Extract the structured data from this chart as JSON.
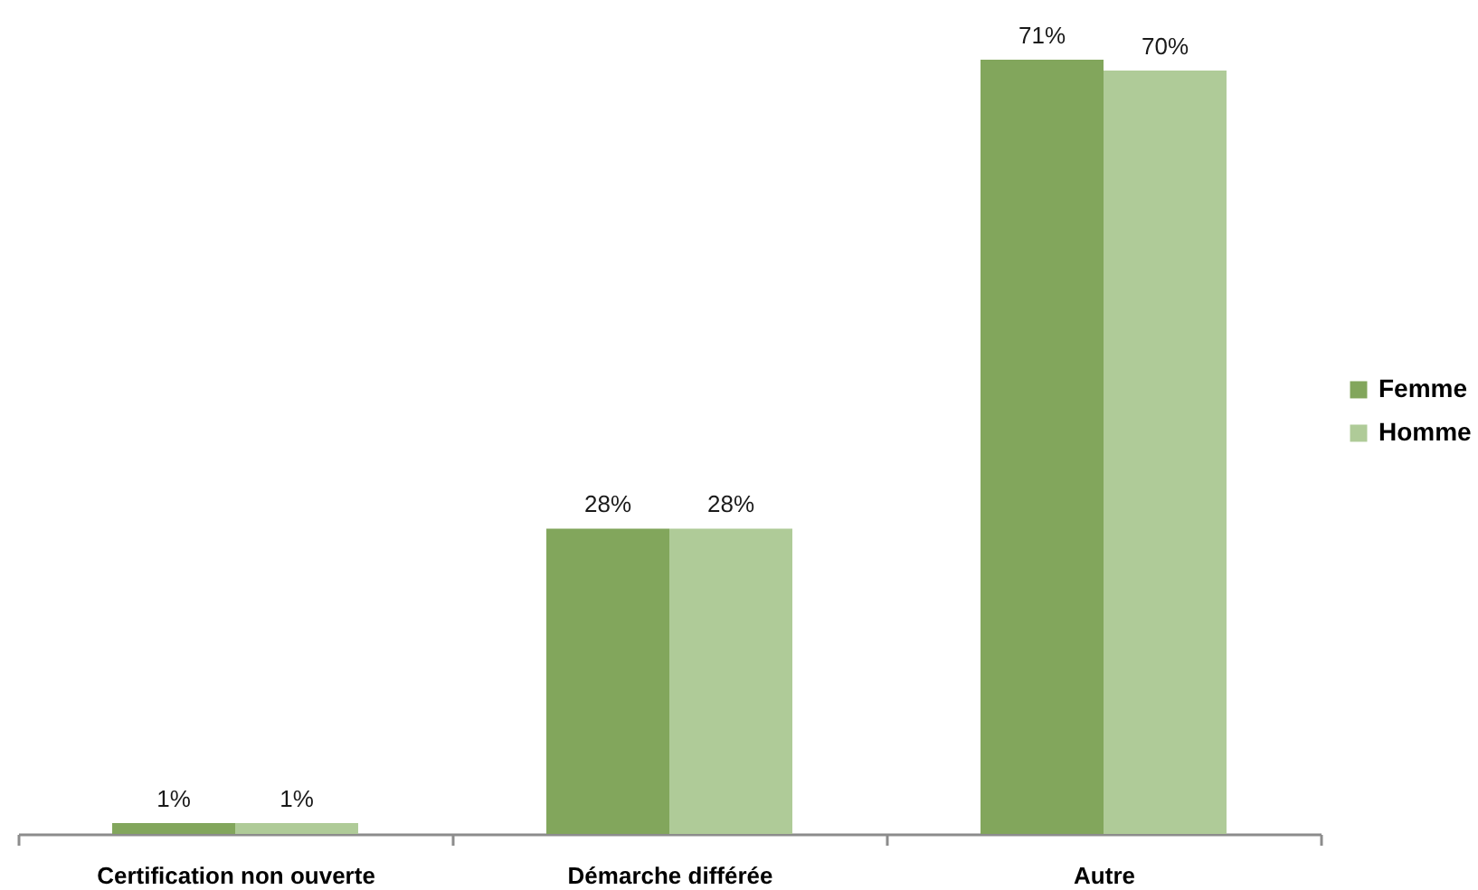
{
  "chart_data": {
    "type": "bar",
    "categories": [
      "Certification non ouverte",
      "Démarche différée",
      "Autre"
    ],
    "series": [
      {
        "name": "Femme",
        "color": "#82a65c",
        "values": [
          1,
          28,
          71
        ],
        "value_labels": [
          "1%",
          "28%",
          "71%"
        ]
      },
      {
        "name": "Homme",
        "color": "#afcb98",
        "values": [
          1,
          28,
          70
        ],
        "value_labels": [
          "1%",
          "28%",
          "70%"
        ]
      }
    ],
    "legend": "right",
    "grid": false
  }
}
